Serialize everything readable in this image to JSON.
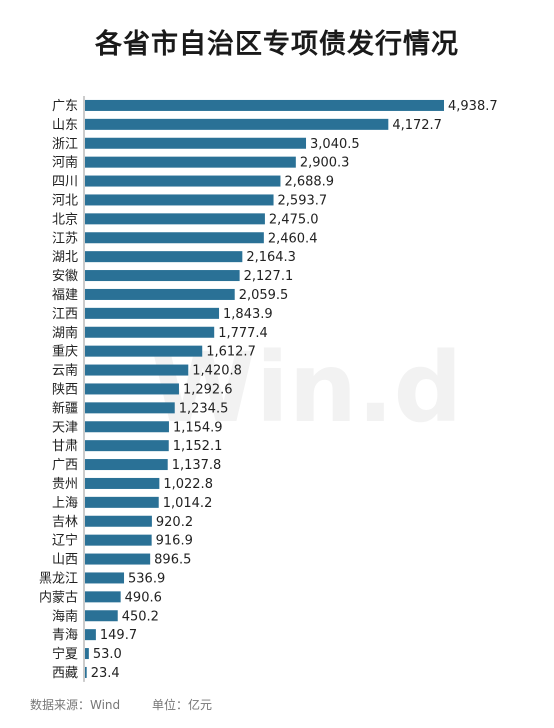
{
  "title": "各省市自治区专项债发行情况",
  "watermark": "Win.d",
  "footer": {
    "source": "数据来源：Wind",
    "unit": "单位：亿元"
  },
  "colors": {
    "bar": "#2a7196",
    "text": "#222222",
    "axis": "#999999"
  },
  "chart_data": {
    "type": "bar",
    "orientation": "horizontal",
    "title": "各省市自治区专项债发行情况",
    "xlabel": "",
    "ylabel": "",
    "grid": false,
    "categories": [
      "广东",
      "山东",
      "浙江",
      "河南",
      "四川",
      "河北",
      "北京",
      "江苏",
      "湖北",
      "安徽",
      "福建",
      "江西",
      "湖南",
      "重庆",
      "云南",
      "陕西",
      "新疆",
      "天津",
      "甘肃",
      "广西",
      "贵州",
      "上海",
      "吉林",
      "辽宁",
      "山西",
      "黑龙江",
      "内蒙古",
      "海南",
      "青海",
      "宁夏",
      "西藏"
    ],
    "values": [
      4938.7,
      4172.7,
      3040.5,
      2900.3,
      2688.9,
      2593.7,
      2475.0,
      2460.4,
      2164.3,
      2127.1,
      2059.5,
      1843.9,
      1777.4,
      1612.7,
      1420.8,
      1292.6,
      1234.5,
      1154.9,
      1152.1,
      1137.8,
      1022.8,
      1014.2,
      920.2,
      916.9,
      896.5,
      536.9,
      490.6,
      450.2,
      149.7,
      53.0,
      23.4
    ],
    "value_labels": [
      "4,938.7",
      "4,172.7",
      "3,040.5",
      "2,900.3",
      "2,688.9",
      "2,593.7",
      "2,475.0",
      "2,460.4",
      "2,164.3",
      "2,127.1",
      "2,059.5",
      "1,843.9",
      "1,777.4",
      "1,612.7",
      "1,420.8",
      "1,292.6",
      "1,234.5",
      "1,154.9",
      "1,152.1",
      "1,137.8",
      "1,022.8",
      "1,014.2",
      "920.2",
      "916.9",
      "896.5",
      "536.9",
      "490.6",
      "450.2",
      "149.7",
      "53.0",
      "23.4"
    ],
    "xlim": [
      0,
      4938.7
    ]
  }
}
